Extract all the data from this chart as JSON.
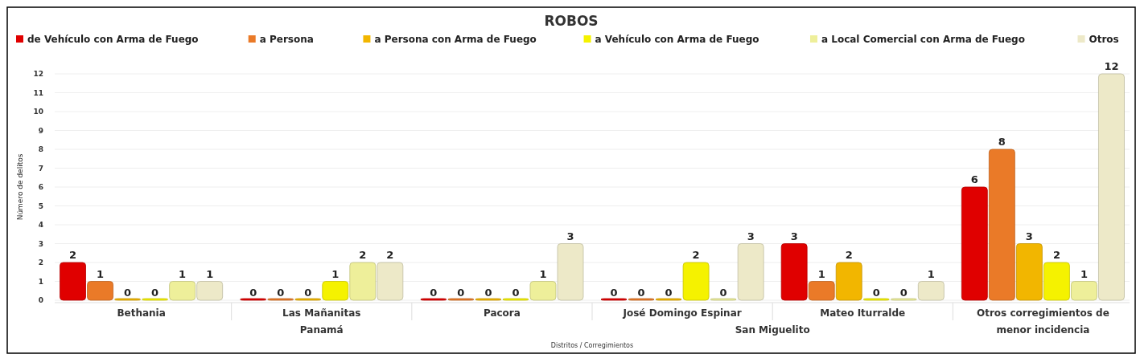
{
  "chart_data": {
    "type": "bar",
    "title": "ROBOS",
    "xlabel": "Distritos / Corregimientos",
    "ylabel": "Número de delitos",
    "categories": [
      "Bethania",
      "Las Mañanitas",
      "Pacora",
      "José Domingo Espinar",
      "Mateo Iturralde",
      "Otros corregimientos de menor incidencia"
    ],
    "series": [
      {
        "name": "de Vehículo con Arma de Fuego",
        "color": "#e00000",
        "values": [
          2,
          0,
          0,
          0,
          3,
          6
        ]
      },
      {
        "name": "a Persona",
        "color": "#ea7a28",
        "values": [
          1,
          0,
          0,
          0,
          1,
          8
        ]
      },
      {
        "name": "a Persona con Arma de Fuego",
        "color": "#f2b600",
        "values": [
          0,
          0,
          0,
          0,
          2,
          3
        ]
      },
      {
        "name": "a Vehículo con Arma de Fuego",
        "color": "#f5f200",
        "values": [
          0,
          1,
          0,
          2,
          0,
          2
        ]
      },
      {
        "name": "a Local Comercial con Arma de Fuego",
        "color": "#eeef9a",
        "values": [
          1,
          2,
          1,
          0,
          0,
          1
        ]
      },
      {
        "name": "Otros",
        "color": "#ede9c8",
        "values": [
          1,
          2,
          3,
          3,
          1,
          12
        ]
      }
    ],
    "ylim": [
      0,
      12
    ],
    "yticks": [
      0,
      1,
      2,
      3,
      4,
      5,
      6,
      7,
      8,
      9,
      10,
      11,
      12
    ],
    "grid": "y",
    "legend": "top",
    "data_labels": true,
    "annotations": [
      "Panamá",
      "San Miguelito"
    ]
  }
}
